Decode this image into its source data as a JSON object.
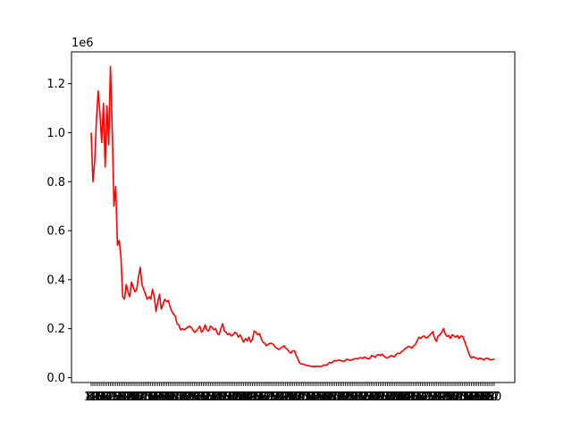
{
  "chart_data": {
    "type": "line",
    "title": "",
    "xlabel": "",
    "ylabel": "",
    "y_offset_label": "1e6",
    "ylim": [
      -20000,
      1330000
    ],
    "yticks": [
      {
        "value": 0,
        "label": "0.0"
      },
      {
        "value": 200000,
        "label": "0.2"
      },
      {
        "value": 400000,
        "label": "0.4"
      },
      {
        "value": 600000,
        "label": "0.6"
      },
      {
        "value": 800000,
        "label": "0.8"
      },
      {
        "value": 1000000,
        "label": "1.0"
      },
      {
        "value": 1200000,
        "label": "1.2"
      }
    ],
    "xtick_count": 231,
    "xtick_labels_note": "overlapping illegible category labels",
    "grid": false,
    "legend": "none",
    "color": "#ff0000",
    "series": [
      {
        "values": [
          1000000,
          800000,
          880000,
          1050000,
          1170000,
          1080000,
          960000,
          1120000,
          860000,
          1110000,
          950000,
          1270000,
          1020000,
          700000,
          780000,
          540000,
          560000,
          490000,
          330000,
          320000,
          380000,
          350000,
          330000,
          390000,
          370000,
          350000,
          360000,
          410000,
          450000,
          380000,
          360000,
          340000,
          320000,
          330000,
          320000,
          360000,
          330000,
          270000,
          310000,
          340000,
          280000,
          300000,
          320000,
          310000,
          315000,
          290000,
          270000,
          260000,
          250000,
          220000,
          215000,
          195000,
          200000,
          195000,
          200000,
          205000,
          210000,
          205000,
          195000,
          185000,
          190000,
          200000,
          210000,
          185000,
          195000,
          215000,
          195000,
          190000,
          210000,
          205000,
          195000,
          200000,
          180000,
          175000,
          200000,
          220000,
          190000,
          185000,
          175000,
          180000,
          170000,
          175000,
          185000,
          180000,
          165000,
          175000,
          160000,
          145000,
          160000,
          150000,
          165000,
          145000,
          155000,
          190000,
          185000,
          175000,
          180000,
          160000,
          145000,
          140000,
          130000,
          135000,
          140000,
          140000,
          135000,
          125000,
          120000,
          115000,
          120000,
          125000,
          130000,
          120000,
          115000,
          105000,
          100000,
          110000,
          110000,
          90000,
          75000,
          60000,
          55000,
          55000,
          52000,
          50000,
          48000,
          47000,
          45000,
          46000,
          45000,
          47000,
          46000,
          45000,
          48000,
          52000,
          50000,
          55000,
          62000,
          60000,
          65000,
          70000,
          68000,
          72000,
          70000,
          68000,
          66000,
          70000,
          75000,
          72000,
          70000,
          74000,
          76000,
          78000,
          76000,
          80000,
          82000,
          78000,
          84000,
          80000,
          76000,
          78000,
          90000,
          88000,
          82000,
          92000,
          94000,
          90000,
          96000,
          88000,
          82000,
          80000,
          85000,
          90000,
          88000,
          84000,
          95000,
          100000,
          98000,
          105000,
          110000,
          118000,
          122000,
          128000,
          125000,
          120000,
          130000,
          135000,
          150000,
          165000,
          160000,
          168000,
          170000,
          162000,
          165000,
          172000,
          180000,
          188000,
          160000,
          148000,
          170000,
          175000,
          185000,
          200000,
          180000,
          168000,
          172000,
          160000,
          175000,
          170000,
          165000,
          172000,
          160000,
          170000,
          168000,
          150000,
          130000,
          110000,
          90000,
          80000,
          85000,
          82000,
          78000,
          75000,
          80000,
          76000,
          72000,
          78000,
          80000,
          75000,
          72000,
          74000,
          76000
        ]
      }
    ]
  }
}
